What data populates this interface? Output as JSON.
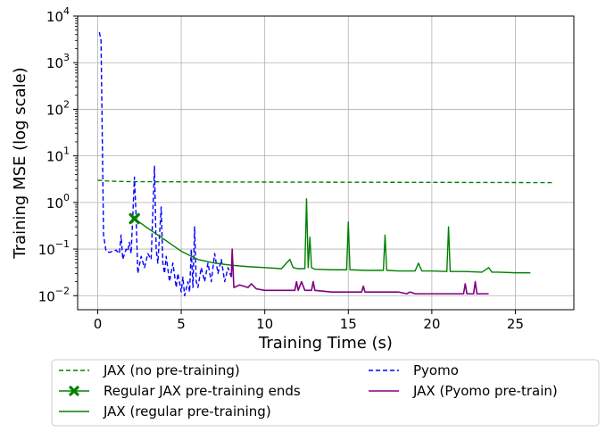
{
  "chart_data": {
    "type": "line",
    "xlabel": "Training Time (s)",
    "ylabel": "Training MSE (log scale)",
    "xlim": [
      -1.2,
      28.5
    ],
    "ylim": [
      0.005,
      10000
    ],
    "y_scale": "log",
    "x_ticks": [
      {
        "value": 0,
        "label": "0"
      },
      {
        "value": 5,
        "label": "5"
      },
      {
        "value": 10,
        "label": "10"
      },
      {
        "value": 15,
        "label": "15"
      },
      {
        "value": 20,
        "label": "20"
      },
      {
        "value": 25,
        "label": "25"
      }
    ],
    "y_ticks": [
      {
        "value": 0.01,
        "base": "10",
        "exp": "−2"
      },
      {
        "value": 0.1,
        "base": "10",
        "exp": "−1"
      },
      {
        "value": 1,
        "base": "10",
        "exp": "0"
      },
      {
        "value": 10,
        "base": "10",
        "exp": "1"
      },
      {
        "value": 100,
        "base": "10",
        "exp": "2"
      },
      {
        "value": 1000,
        "base": "10",
        "exp": "3"
      },
      {
        "value": 10000,
        "base": "10",
        "exp": "4"
      }
    ],
    "grid": true,
    "legend_position": "bottom-outside",
    "series": [
      {
        "name": "JAX (no pre-training)",
        "color": "#008000",
        "style": "dashed",
        "width": 1.4,
        "points": [
          [
            0,
            3.0
          ],
          [
            0.5,
            2.9
          ],
          [
            1,
            2.85
          ],
          [
            2,
            2.8
          ],
          [
            4,
            2.78
          ],
          [
            6,
            2.76
          ],
          [
            10,
            2.74
          ],
          [
            15,
            2.72
          ],
          [
            20,
            2.7
          ],
          [
            25,
            2.68
          ],
          [
            27.3,
            2.67
          ]
        ]
      },
      {
        "name": "Pyomo",
        "color": "#0000ff",
        "style": "dashed",
        "width": 1.4,
        "points": [
          [
            0.1,
            4500
          ],
          [
            0.2,
            3000
          ],
          [
            0.35,
            0.2
          ],
          [
            0.5,
            0.09
          ],
          [
            0.7,
            0.085
          ],
          [
            0.9,
            0.09
          ],
          [
            1.1,
            0.095
          ],
          [
            1.3,
            0.08
          ],
          [
            1.4,
            0.2
          ],
          [
            1.5,
            0.06
          ],
          [
            1.7,
            0.1
          ],
          [
            1.8,
            0.09
          ],
          [
            1.9,
            0.14
          ],
          [
            2.0,
            0.08
          ],
          [
            2.1,
            0.5
          ],
          [
            2.2,
            3.5
          ],
          [
            2.3,
            0.5
          ],
          [
            2.4,
            0.03
          ],
          [
            2.6,
            0.07
          ],
          [
            2.8,
            0.04
          ],
          [
            3.0,
            0.08
          ],
          [
            3.2,
            0.06
          ],
          [
            3.4,
            6.0
          ],
          [
            3.5,
            0.1
          ],
          [
            3.6,
            0.05
          ],
          [
            3.8,
            0.8
          ],
          [
            3.9,
            0.05
          ],
          [
            4.0,
            0.03
          ],
          [
            4.1,
            0.07
          ],
          [
            4.3,
            0.02
          ],
          [
            4.5,
            0.05
          ],
          [
            4.7,
            0.015
          ],
          [
            4.8,
            0.03
          ],
          [
            5.0,
            0.012
          ],
          [
            5.1,
            0.025
          ],
          [
            5.2,
            0.01
          ],
          [
            5.4,
            0.02
          ],
          [
            5.5,
            0.012
          ],
          [
            5.6,
            0.1
          ],
          [
            5.7,
            0.015
          ],
          [
            5.8,
            0.3
          ],
          [
            5.9,
            0.02
          ],
          [
            6.0,
            0.015
          ],
          [
            6.2,
            0.04
          ],
          [
            6.4,
            0.02
          ],
          [
            6.6,
            0.05
          ],
          [
            6.8,
            0.02
          ],
          [
            7.0,
            0.08
          ],
          [
            7.2,
            0.03
          ],
          [
            7.4,
            0.06
          ],
          [
            7.6,
            0.02
          ],
          [
            7.8,
            0.04
          ],
          [
            8.0,
            0.025
          ]
        ]
      },
      {
        "name": "JAX (regular pre-training)",
        "color": "#008000",
        "style": "solid",
        "width": 1.4,
        "points": [
          [
            2.2,
            0.45
          ],
          [
            3,
            0.28
          ],
          [
            4,
            0.16
          ],
          [
            5,
            0.09
          ],
          [
            6,
            0.06
          ],
          [
            7,
            0.05
          ],
          [
            8,
            0.045
          ],
          [
            9,
            0.042
          ],
          [
            10,
            0.04
          ],
          [
            11,
            0.038
          ],
          [
            11.5,
            0.06
          ],
          [
            11.7,
            0.04
          ],
          [
            12,
            0.038
          ],
          [
            12.4,
            0.038
          ],
          [
            12.5,
            1.2
          ],
          [
            12.6,
            0.04
          ],
          [
            12.7,
            0.18
          ],
          [
            12.8,
            0.04
          ],
          [
            13,
            0.037
          ],
          [
            14,
            0.036
          ],
          [
            14.9,
            0.036
          ],
          [
            15.0,
            0.38
          ],
          [
            15.1,
            0.036
          ],
          [
            16,
            0.035
          ],
          [
            17.1,
            0.035
          ],
          [
            17.2,
            0.2
          ],
          [
            17.3,
            0.035
          ],
          [
            18,
            0.034
          ],
          [
            19,
            0.034
          ],
          [
            19.2,
            0.05
          ],
          [
            19.4,
            0.034
          ],
          [
            20,
            0.034
          ],
          [
            20.9,
            0.033
          ],
          [
            21.0,
            0.3
          ],
          [
            21.1,
            0.033
          ],
          [
            22,
            0.033
          ],
          [
            23,
            0.032
          ],
          [
            23.4,
            0.04
          ],
          [
            23.6,
            0.032
          ],
          [
            24,
            0.032
          ],
          [
            25,
            0.031
          ],
          [
            25.9,
            0.031
          ]
        ]
      },
      {
        "name": "JAX (Pyomo pre-train)",
        "color": "#800080",
        "style": "solid",
        "width": 1.6,
        "points": [
          [
            8.0,
            0.025
          ],
          [
            8.05,
            0.1
          ],
          [
            8.15,
            0.015
          ],
          [
            8.5,
            0.017
          ],
          [
            9.0,
            0.015
          ],
          [
            9.2,
            0.018
          ],
          [
            9.5,
            0.014
          ],
          [
            10,
            0.013
          ],
          [
            11,
            0.013
          ],
          [
            11.8,
            0.013
          ],
          [
            11.9,
            0.02
          ],
          [
            12,
            0.013
          ],
          [
            12.2,
            0.02
          ],
          [
            12.4,
            0.013
          ],
          [
            12.8,
            0.013
          ],
          [
            12.9,
            0.02
          ],
          [
            13.0,
            0.013
          ],
          [
            14,
            0.012
          ],
          [
            15,
            0.012
          ],
          [
            15.8,
            0.012
          ],
          [
            15.9,
            0.016
          ],
          [
            16.0,
            0.012
          ],
          [
            17,
            0.012
          ],
          [
            18,
            0.012
          ],
          [
            18.5,
            0.011
          ],
          [
            18.7,
            0.012
          ],
          [
            19.0,
            0.011
          ],
          [
            20,
            0.011
          ],
          [
            21,
            0.011
          ],
          [
            21.9,
            0.011
          ],
          [
            22.0,
            0.018
          ],
          [
            22.1,
            0.011
          ],
          [
            22.5,
            0.011
          ],
          [
            22.6,
            0.02
          ],
          [
            22.7,
            0.011
          ],
          [
            23,
            0.011
          ],
          [
            23.4,
            0.011
          ]
        ]
      }
    ],
    "marker": {
      "name": "Regular JAX pre-training ends",
      "color": "#008000",
      "x": 2.2,
      "y": 0.45
    }
  },
  "legend": {
    "items": [
      {
        "label": "JAX (no pre-training)",
        "color": "#008000",
        "style": "dashed",
        "marker": false
      },
      {
        "label": "Regular JAX pre-training ends",
        "color": "#008000",
        "style": "solid",
        "marker": true
      },
      {
        "label": "JAX (regular pre-training)",
        "color": "#008000",
        "style": "solid",
        "marker": false
      },
      {
        "label": "Pyomo",
        "color": "#0000ff",
        "style": "dashed",
        "marker": false
      },
      {
        "label": "JAX (Pyomo pre-train)",
        "color": "#800080",
        "style": "solid",
        "marker": false
      }
    ]
  }
}
